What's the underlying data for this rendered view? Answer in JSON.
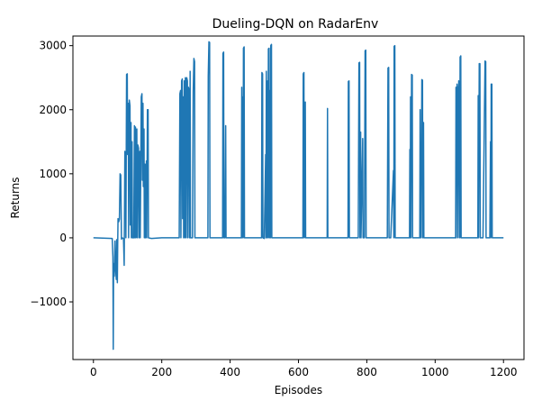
{
  "chart_data": {
    "type": "line",
    "title": "Dueling-DQN on RadarEnv",
    "xlabel": "Episodes",
    "ylabel": "Returns",
    "xlim": [
      -60,
      1260
    ],
    "ylim": [
      -1900,
      3150
    ],
    "xticks": [
      0,
      200,
      400,
      600,
      800,
      1000,
      1200
    ],
    "yticks": [
      -1000,
      0,
      1000,
      2000,
      3000
    ],
    "grid": false,
    "legend": "none",
    "series": [
      {
        "color": "#1f77b4",
        "points": [
          [
            0,
            0
          ],
          [
            55,
            -10
          ],
          [
            57,
            -300
          ],
          [
            58,
            -1740
          ],
          [
            59,
            -400
          ],
          [
            61,
            -600
          ],
          [
            63,
            -50
          ],
          [
            65,
            -500
          ],
          [
            67,
            -650
          ],
          [
            68,
            -30
          ],
          [
            70,
            -700
          ],
          [
            71,
            -100
          ],
          [
            72,
            300
          ],
          [
            74,
            250
          ],
          [
            76,
            290
          ],
          [
            78,
            1000
          ],
          [
            80,
            980
          ],
          [
            82,
            -20
          ],
          [
            84,
            0
          ],
          [
            88,
            -10
          ],
          [
            90,
            -430
          ],
          [
            92,
            1350
          ],
          [
            94,
            1250
          ],
          [
            95,
            0
          ],
          [
            97,
            2550
          ],
          [
            99,
            2560
          ],
          [
            100,
            1300
          ],
          [
            102,
            2100
          ],
          [
            103,
            0
          ],
          [
            105,
            2150
          ],
          [
            107,
            2060
          ],
          [
            108,
            200
          ],
          [
            110,
            1800
          ],
          [
            111,
            0
          ],
          [
            113,
            1500
          ],
          [
            114,
            0
          ],
          [
            118,
            0
          ],
          [
            120,
            1750
          ],
          [
            121,
            0
          ],
          [
            123,
            1730
          ],
          [
            124,
            0
          ],
          [
            127,
            1700
          ],
          [
            128,
            0
          ],
          [
            130,
            1450
          ],
          [
            132,
            1400
          ],
          [
            133,
            0
          ],
          [
            136,
            1350
          ],
          [
            137,
            0
          ],
          [
            140,
            2200
          ],
          [
            142,
            2250
          ],
          [
            143,
            900
          ],
          [
            145,
            2100
          ],
          [
            146,
            800
          ],
          [
            148,
            1700
          ],
          [
            149,
            0
          ],
          [
            151,
            1150
          ],
          [
            152,
            0
          ],
          [
            155,
            1200
          ],
          [
            156,
            0
          ],
          [
            158,
            2000
          ],
          [
            160,
            2000
          ],
          [
            161,
            0
          ],
          [
            170,
            -10
          ],
          [
            200,
            0
          ],
          [
            240,
            0
          ],
          [
            251,
            0
          ],
          [
            253,
            2250
          ],
          [
            255,
            2300
          ],
          [
            256,
            0
          ],
          [
            258,
            2450
          ],
          [
            260,
            2480
          ],
          [
            261,
            300
          ],
          [
            263,
            2200
          ],
          [
            264,
            0
          ],
          [
            266,
            2450
          ],
          [
            267,
            0
          ],
          [
            269,
            2500
          ],
          [
            270,
            2400
          ],
          [
            271,
            0
          ],
          [
            273,
            2500
          ],
          [
            275,
            2450
          ],
          [
            276,
            0
          ],
          [
            278,
            2350
          ],
          [
            280,
            2300
          ],
          [
            281,
            0
          ],
          [
            283,
            2600
          ],
          [
            284,
            0
          ],
          [
            290,
            0
          ],
          [
            292,
            2280
          ],
          [
            294,
            2800
          ],
          [
            296,
            2750
          ],
          [
            297,
            0
          ],
          [
            330,
            0
          ],
          [
            335,
            0
          ],
          [
            336,
            2520
          ],
          [
            338,
            3060
          ],
          [
            340,
            3050
          ],
          [
            341,
            0
          ],
          [
            375,
            0
          ],
          [
            378,
            0
          ],
          [
            379,
            2880
          ],
          [
            381,
            2900
          ],
          [
            382,
            0
          ],
          [
            385,
            0
          ],
          [
            387,
            1750
          ],
          [
            388,
            0
          ],
          [
            430,
            0
          ],
          [
            433,
            0
          ],
          [
            434,
            2350
          ],
          [
            435,
            0
          ],
          [
            437,
            2200
          ],
          [
            438,
            0
          ],
          [
            439,
            2960
          ],
          [
            441,
            2980
          ],
          [
            442,
            0
          ],
          [
            490,
            0
          ],
          [
            492,
            0
          ],
          [
            493,
            2580
          ],
          [
            495,
            2560
          ],
          [
            496,
            0
          ],
          [
            500,
            -10
          ],
          [
            504,
            1300
          ],
          [
            505,
            0
          ],
          [
            506,
            2600
          ],
          [
            507,
            0
          ],
          [
            508,
            2400
          ],
          [
            510,
            2450
          ],
          [
            511,
            0
          ],
          [
            512,
            2950
          ],
          [
            514,
            2960
          ],
          [
            515,
            0
          ],
          [
            516,
            2300
          ],
          [
            517,
            2200
          ],
          [
            518,
            0
          ],
          [
            519,
            3000
          ],
          [
            521,
            3020
          ],
          [
            522,
            0
          ],
          [
            530,
            0
          ],
          [
            600,
            0
          ],
          [
            613,
            0
          ],
          [
            614,
            2560
          ],
          [
            616,
            2580
          ],
          [
            617,
            0
          ],
          [
            620,
            2120
          ],
          [
            621,
            0
          ],
          [
            680,
            0
          ],
          [
            684,
            0
          ],
          [
            685,
            2020
          ],
          [
            686,
            0
          ],
          [
            740,
            0
          ],
          [
            745,
            0
          ],
          [
            746,
            2440
          ],
          [
            748,
            2450
          ],
          [
            749,
            0
          ],
          [
            775,
            0
          ],
          [
            777,
            2730
          ],
          [
            779,
            2740
          ],
          [
            780,
            0
          ],
          [
            782,
            1650
          ],
          [
            783,
            0
          ],
          [
            788,
            1550
          ],
          [
            789,
            0
          ],
          [
            793,
            0
          ],
          [
            795,
            2920
          ],
          [
            797,
            2930
          ],
          [
            798,
            0
          ],
          [
            830,
            0
          ],
          [
            860,
            0
          ],
          [
            862,
            2650
          ],
          [
            864,
            2660
          ],
          [
            865,
            0
          ],
          [
            870,
            0
          ],
          [
            878,
            1050
          ],
          [
            879,
            0
          ],
          [
            880,
            2990
          ],
          [
            882,
            3000
          ],
          [
            883,
            0
          ],
          [
            920,
            0
          ],
          [
            925,
            0
          ],
          [
            926,
            1380
          ],
          [
            927,
            0
          ],
          [
            928,
            2200
          ],
          [
            929,
            0
          ],
          [
            931,
            2550
          ],
          [
            933,
            2540
          ],
          [
            934,
            0
          ],
          [
            950,
            0
          ],
          [
            955,
            0
          ],
          [
            956,
            2000
          ],
          [
            957,
            0
          ],
          [
            958,
            1150
          ],
          [
            959,
            0
          ],
          [
            961,
            2470
          ],
          [
            963,
            2460
          ],
          [
            964,
            0
          ],
          [
            966,
            1800
          ],
          [
            967,
            0
          ],
          [
            1000,
            0
          ],
          [
            1050,
            0
          ],
          [
            1060,
            0
          ],
          [
            1061,
            2350
          ],
          [
            1062,
            0
          ],
          [
            1064,
            2400
          ],
          [
            1066,
            2300
          ],
          [
            1067,
            0
          ],
          [
            1069,
            2450
          ],
          [
            1071,
            2380
          ],
          [
            1072,
            0
          ],
          [
            1073,
            2820
          ],
          [
            1075,
            2840
          ],
          [
            1076,
            0
          ],
          [
            1120,
            0
          ],
          [
            1125,
            0
          ],
          [
            1126,
            2220
          ],
          [
            1127,
            0
          ],
          [
            1129,
            2720
          ],
          [
            1131,
            2720
          ],
          [
            1132,
            0
          ],
          [
            1140,
            0
          ],
          [
            1146,
            2760
          ],
          [
            1148,
            2750
          ],
          [
            1149,
            0
          ],
          [
            1160,
            0
          ],
          [
            1162,
            1500
          ],
          [
            1163,
            0
          ],
          [
            1164,
            2400
          ],
          [
            1166,
            2400
          ],
          [
            1167,
            0
          ],
          [
            1200,
            0
          ]
        ]
      }
    ]
  }
}
